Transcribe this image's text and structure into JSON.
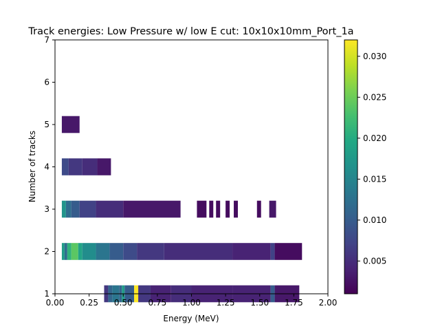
{
  "chart_data": {
    "type": "heatmap",
    "title": "Track energies: Low Pressure w/ low E cut: 10x10x10mm_Port_1a",
    "xlabel": "Energy (MeV)",
    "ylabel": "Number of tracks",
    "xlim": [
      0.0,
      2.0
    ],
    "ylim": [
      1,
      7
    ],
    "x_ticks": [
      "0.00",
      "0.25",
      "0.50",
      "0.75",
      "1.00",
      "1.25",
      "1.50",
      "1.75",
      "2.00"
    ],
    "y_ticks": [
      "1",
      "2",
      "3",
      "4",
      "5",
      "6",
      "7"
    ],
    "colormap": "viridis",
    "colorbar": {
      "range": [
        0.001,
        0.032
      ],
      "ticks": [
        "0.005",
        "0.010",
        "0.015",
        "0.020",
        "0.025",
        "0.030"
      ]
    },
    "rows": [
      {
        "tracks": 1,
        "segments": [
          {
            "x0": 0.36,
            "x1": 0.39,
            "value": 0.006
          },
          {
            "x0": 0.39,
            "x1": 0.42,
            "value": 0.011
          },
          {
            "x0": 0.42,
            "x1": 0.47,
            "value": 0.013
          },
          {
            "x0": 0.47,
            "x1": 0.49,
            "value": 0.011
          },
          {
            "x0": 0.49,
            "x1": 0.51,
            "value": 0.018
          },
          {
            "x0": 0.51,
            "x1": 0.58,
            "value": 0.01
          },
          {
            "x0": 0.58,
            "x1": 0.61,
            "value": 0.032
          },
          {
            "x0": 0.61,
            "x1": 0.7,
            "value": 0.006
          },
          {
            "x0": 0.7,
            "x1": 0.85,
            "value": 0.004
          },
          {
            "x0": 0.85,
            "x1": 1.0,
            "value": 0.005
          },
          {
            "x0": 1.0,
            "x1": 1.3,
            "value": 0.004
          },
          {
            "x0": 1.3,
            "x1": 1.58,
            "value": 0.004
          },
          {
            "x0": 1.58,
            "x1": 1.61,
            "value": 0.01
          },
          {
            "x0": 1.61,
            "x1": 1.79,
            "value": 0.003
          }
        ]
      },
      {
        "tracks": 2,
        "segments": [
          {
            "x0": 0.05,
            "x1": 0.07,
            "value": 0.018
          },
          {
            "x0": 0.07,
            "x1": 0.09,
            "value": 0.012
          },
          {
            "x0": 0.09,
            "x1": 0.12,
            "value": 0.021
          },
          {
            "x0": 0.12,
            "x1": 0.17,
            "value": 0.024
          },
          {
            "x0": 0.17,
            "x1": 0.2,
            "value": 0.019
          },
          {
            "x0": 0.2,
            "x1": 0.3,
            "value": 0.016
          },
          {
            "x0": 0.3,
            "x1": 0.4,
            "value": 0.013
          },
          {
            "x0": 0.4,
            "x1": 0.5,
            "value": 0.01
          },
          {
            "x0": 0.5,
            "x1": 0.6,
            "value": 0.008
          },
          {
            "x0": 0.6,
            "x1": 0.8,
            "value": 0.006
          },
          {
            "x0": 0.8,
            "x1": 1.0,
            "value": 0.005
          },
          {
            "x0": 1.0,
            "x1": 1.3,
            "value": 0.005
          },
          {
            "x0": 1.3,
            "x1": 1.58,
            "value": 0.004
          },
          {
            "x0": 1.58,
            "x1": 1.61,
            "value": 0.007
          },
          {
            "x0": 1.61,
            "x1": 1.81,
            "value": 0.002
          }
        ]
      },
      {
        "tracks": 3,
        "segments": [
          {
            "x0": 0.05,
            "x1": 0.08,
            "value": 0.017
          },
          {
            "x0": 0.08,
            "x1": 0.12,
            "value": 0.012
          },
          {
            "x0": 0.12,
            "x1": 0.18,
            "value": 0.01
          },
          {
            "x0": 0.18,
            "x1": 0.3,
            "value": 0.007
          },
          {
            "x0": 0.3,
            "x1": 0.5,
            "value": 0.005
          },
          {
            "x0": 0.5,
            "x1": 0.92,
            "value": 0.003
          },
          {
            "x0": 1.04,
            "x1": 1.11,
            "value": 0.002
          },
          {
            "x0": 1.13,
            "x1": 1.16,
            "value": 0.002
          },
          {
            "x0": 1.18,
            "x1": 1.21,
            "value": 0.002
          },
          {
            "x0": 1.25,
            "x1": 1.28,
            "value": 0.002
          },
          {
            "x0": 1.31,
            "x1": 1.34,
            "value": 0.002
          },
          {
            "x0": 1.48,
            "x1": 1.51,
            "value": 0.002
          },
          {
            "x0": 1.57,
            "x1": 1.62,
            "value": 0.003
          }
        ]
      },
      {
        "tracks": 4,
        "segments": [
          {
            "x0": 0.05,
            "x1": 0.1,
            "value": 0.008
          },
          {
            "x0": 0.1,
            "x1": 0.2,
            "value": 0.006
          },
          {
            "x0": 0.2,
            "x1": 0.31,
            "value": 0.005
          },
          {
            "x0": 0.31,
            "x1": 0.41,
            "value": 0.003
          }
        ]
      },
      {
        "tracks": 5,
        "segments": [
          {
            "x0": 0.05,
            "x1": 0.18,
            "value": 0.003
          }
        ]
      }
    ]
  }
}
